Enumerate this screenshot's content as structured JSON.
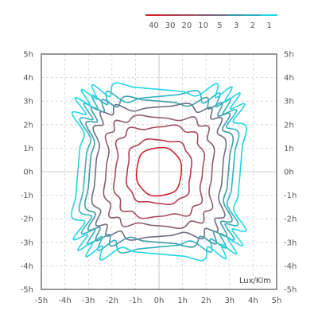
{
  "chart_data": {
    "type": "line",
    "unit_label": "Lux/Klm",
    "xlim": [
      -5,
      5
    ],
    "ylim": [
      -5,
      5
    ],
    "grid": true,
    "legend_placement": "top-right",
    "x_ticks": [
      {
        "v": -5,
        "label": "-5h"
      },
      {
        "v": -4,
        "label": "-4h"
      },
      {
        "v": -3,
        "label": "-3h"
      },
      {
        "v": -2,
        "label": "-2h"
      },
      {
        "v": -1,
        "label": "-1h"
      },
      {
        "v": 0,
        "label": "0h"
      },
      {
        "v": 1,
        "label": "1h"
      },
      {
        "v": 2,
        "label": "2h"
      },
      {
        "v": 3,
        "label": "3h"
      },
      {
        "v": 4,
        "label": "4h"
      },
      {
        "v": 5,
        "label": "5h"
      }
    ],
    "y_ticks": [
      {
        "v": 5,
        "label": "5h"
      },
      {
        "v": 4,
        "label": "4h"
      },
      {
        "v": 3,
        "label": "3h"
      },
      {
        "v": 2,
        "label": "2h"
      },
      {
        "v": 1,
        "label": "1h"
      },
      {
        "v": 0,
        "label": "0h"
      },
      {
        "v": -1,
        "label": "-1h"
      },
      {
        "v": -2,
        "label": "-2h"
      },
      {
        "v": -3,
        "label": "-3h"
      },
      {
        "v": -4,
        "label": "-4h"
      },
      {
        "v": -5,
        "label": "-5h"
      }
    ],
    "series": [
      {
        "name": "40",
        "color": "#d0202a",
        "half_width": 0.95,
        "half_height": 1.02,
        "squareness": 2.4,
        "wave_amp": 0.02,
        "wave_freq": 6
      },
      {
        "name": "30",
        "color": "#b53a4a",
        "half_width": 1.35,
        "half_height": 1.35,
        "squareness": 3.0,
        "wave_amp": 0.04,
        "wave_freq": 8
      },
      {
        "name": "20",
        "color": "#a84a5e",
        "half_width": 1.85,
        "half_height": 1.9,
        "squareness": 3.6,
        "wave_amp": 0.05,
        "wave_freq": 10
      },
      {
        "name": "10",
        "color": "#8c5a72",
        "half_width": 2.25,
        "half_height": 2.3,
        "squareness": 4.2,
        "wave_amp": 0.05,
        "wave_freq": 12
      },
      {
        "name": "5",
        "color": "#6e6e86",
        "half_width": 2.7,
        "half_height": 2.75,
        "squareness": 5.0,
        "wave_amp": 0.06,
        "wave_freq": 14
      },
      {
        "name": "3",
        "color": "#3f9aa8",
        "half_width": 2.95,
        "half_height": 3.0,
        "squareness": 5.6,
        "wave_amp": 0.07,
        "wave_freq": 16
      },
      {
        "name": "2",
        "color": "#2fb3c2",
        "half_width": 3.15,
        "half_height": 3.2,
        "squareness": 6.2,
        "wave_amp": 0.08,
        "wave_freq": 18
      },
      {
        "name": "1",
        "color": "#22d6e6",
        "half_width": 3.45,
        "half_height": 3.5,
        "squareness": 7.0,
        "wave_amp": 0.08,
        "wave_freq": 20
      }
    ]
  }
}
